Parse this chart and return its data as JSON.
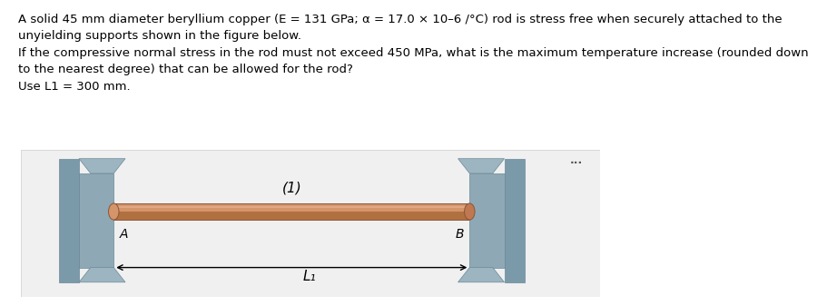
{
  "title_text": "A solid 45 mm diameter beryllium copper (E = 131 GPa; α = 17.0 × 10–6 /°C) rod is stress free when securely attached to the\nunyielding supports shown in the figure below.\nIf the compressive normal stress in the rod must not exceed 450 MPa, what is the maximum temperature increase (rounded down\nto the nearest degree) that can be allowed for the rod?\nUse L1 = 300 mm.",
  "bg_color": "#ffffff",
  "box_bg": "#f0f0f0",
  "wall_color": "#9aacb8",
  "rod_top_color": "#d4956a",
  "rod_bottom_color": "#b07040",
  "rod_highlight": "#e8b090",
  "dots_color": "#555555",
  "label_A": "A",
  "label_B": "B",
  "label_rod": "(1)",
  "label_L": "L₁",
  "arrow_color": "#000000",
  "text_fontsize": 9.5,
  "fig_width": 6.64,
  "fig_height": 3.24
}
